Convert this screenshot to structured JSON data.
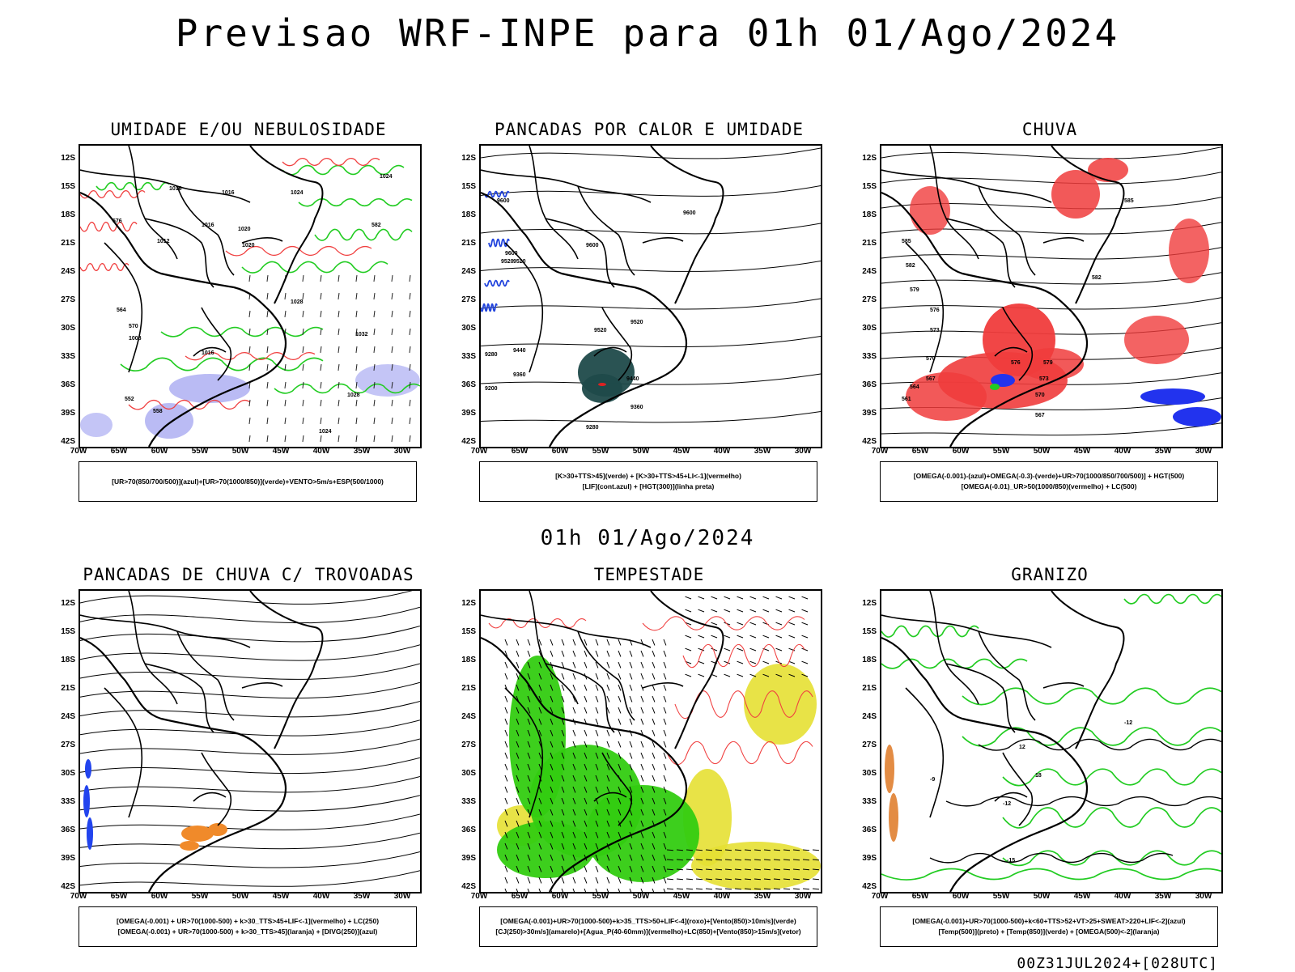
{
  "title": "Previsao WRF-INPE  para 01h 01/Ago/2024",
  "middle_title": "01h 01/Ago/2024",
  "footer_stamp": "00Z31JUL2024+[028UTC]",
  "axes": {
    "lat_ticks": [
      "12S",
      "15S",
      "18S",
      "21S",
      "24S",
      "27S",
      "30S",
      "33S",
      "36S",
      "39S",
      "42S"
    ],
    "lon_ticks": [
      "70W",
      "65W",
      "60W",
      "55W",
      "50W",
      "45W",
      "40W",
      "35W",
      "30W"
    ]
  },
  "panels": [
    {
      "title": "UMIDADE E/OU NEBULOSIDADE",
      "legend": [
        "[UR>70(850/700/500)](azul)+[UR>70(1000/850)](verde)+VENTO>5m/s+ESP(500/1000)"
      ],
      "contour_labels": [
        "1016",
        "1016",
        "1016",
        "1012",
        "1024",
        "1020",
        "1020",
        "1008",
        "1028",
        "1032",
        "1016",
        "1028",
        "1024",
        "1024",
        "552",
        "558",
        "576",
        "570",
        "564",
        "582"
      ],
      "colors": {
        "blue": "#9d9ef0",
        "green": "#22cc22",
        "red": "#f04040",
        "black": "#000000"
      }
    },
    {
      "title": "PANCADAS POR CALOR E UMIDADE",
      "legend": [
        "[K>30+TTS>45](verde) + [K>30+TTS>45+LI<-1](vermelho)",
        "[LIF](cont.azul) + [HGT(300)](linha preta)"
      ],
      "contour_labels": [
        "9600",
        "9600",
        "9600",
        "9600",
        "9520",
        "9520",
        "9520",
        "9520",
        "9440",
        "9440",
        "9360",
        "9360",
        "9280",
        "9200",
        "9280"
      ],
      "colors": {
        "blue": "#2244dd",
        "fill": "#1f4a4a",
        "red": "#dd2222",
        "black": "#000000"
      }
    },
    {
      "title": "CHUVA",
      "legend": [
        "[OMEGA(-0.001)-(azul)+OMEGA(-0.3)-(verde)+UR>70(1000/850/700/500)] + HGT(500)",
        "[OMEGA(-0.01)_UR>50(1000/850)(vermelho) + LC(500)"
      ],
      "contour_labels": [
        "585",
        "582",
        "579",
        "576",
        "573",
        "570",
        "567",
        "564",
        "561",
        "576",
        "579",
        "573",
        "570",
        "567",
        "582",
        "585"
      ],
      "colors": {
        "blue": "#2233ee",
        "green": "#22cc22",
        "red": "#f03c3c",
        "black": "#000000"
      }
    },
    {
      "title": "PANCADAS DE CHUVA C/ TROVOADAS",
      "legend": [
        "[OMEGA(-0.001) + UR>70(1000-500) + k>30_TTS>45+LIF<-1](vermelho) + LC(250)",
        "[OMEGA(-0.001) + UR>70(1000-500) + k>30_TTS>45](laranja) + [DIVG(250)](azul)"
      ],
      "contour_labels": [],
      "colors": {
        "blue": "#2244ee",
        "orange": "#f08a2a",
        "black": "#000000"
      }
    },
    {
      "title": "TEMPESTADE",
      "legend": [
        "[OMEGA(-0.001)+UR>70(1000-500)+k>35_TTS>50+LIF<-4](roxo)+[Vento(850)>10m/s](verde)",
        "[CJ(250)>30m/s](amarelo)+[Agua_P(40-60mm)](vermelho)+LC(850)+[Vento(850)>15m/s](vetor)"
      ],
      "contour_labels": [],
      "colors": {
        "green": "#33cc11",
        "yellow": "#e5e033",
        "red": "#f04040",
        "black": "#000000"
      }
    },
    {
      "title": "GRANIZO",
      "legend": [
        "[OMEGA(-0.001)+UR>70(1000-500)+k<60+TTS>52+VT>25+SWEAT>220+LIF<-2](azul)",
        "[Temp(500)](preto) + [Temp(850)](verde) + [OMEGA(500)<-2](laranja)"
      ],
      "contour_labels": [
        "-12",
        "-15",
        "-9",
        "12",
        "18",
        "-12"
      ],
      "colors": {
        "green": "#22cc22",
        "orange": "#e08030",
        "black": "#000000"
      }
    }
  ]
}
